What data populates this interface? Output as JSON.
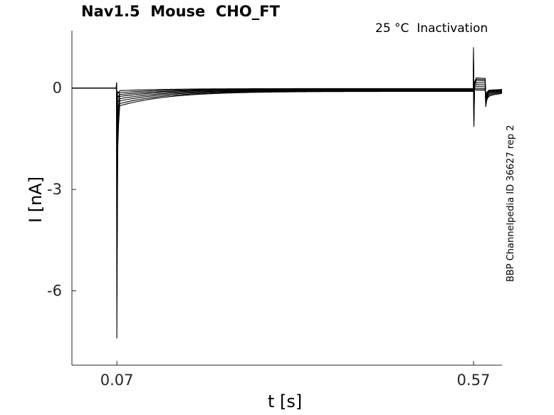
{
  "title": "Nav1.5  Mouse  CHO_FT",
  "subtitle": "25 °C  Inactivation",
  "side_label": "BBP Channelpedia ID 36627 rep 2",
  "chart_data": {
    "type": "line",
    "xlabel": "t [s]",
    "ylabel": "I [nA]",
    "xlim": [
      0.007,
      0.61
    ],
    "ylim": [
      -8.2,
      1.7
    ],
    "xticks": [
      0.07,
      0.57
    ],
    "xtick_labels": [
      "0.07",
      "0.57"
    ],
    "yticks": [
      0,
      -3,
      -6
    ],
    "ytick_labels": [
      "0",
      "-3",
      "-6"
    ],
    "grid": false,
    "legend": "none",
    "line_color": "#000000",
    "series": [
      {
        "peak": -7.4,
        "plateau": -0.55,
        "step2": 0.3,
        "tail": -0.08
      },
      {
        "peak": -6.2,
        "plateau": -0.48,
        "step2": 0.26,
        "tail": -0.1
      },
      {
        "peak": -4.9,
        "plateau": -0.4,
        "step2": 0.22,
        "tail": -0.12
      },
      {
        "peak": -3.6,
        "plateau": -0.33,
        "step2": 0.16,
        "tail": -0.15
      },
      {
        "peak": -2.5,
        "plateau": -0.26,
        "step2": 0.1,
        "tail": -0.18
      },
      {
        "peak": -1.6,
        "plateau": -0.2,
        "step2": 0.04,
        "tail": -0.22
      },
      {
        "peak": -0.9,
        "plateau": -0.14,
        "step2": -0.02,
        "tail": -0.26
      },
      {
        "peak": -0.4,
        "plateau": -0.08,
        "step2": -0.06,
        "tail": -0.3
      }
    ]
  }
}
